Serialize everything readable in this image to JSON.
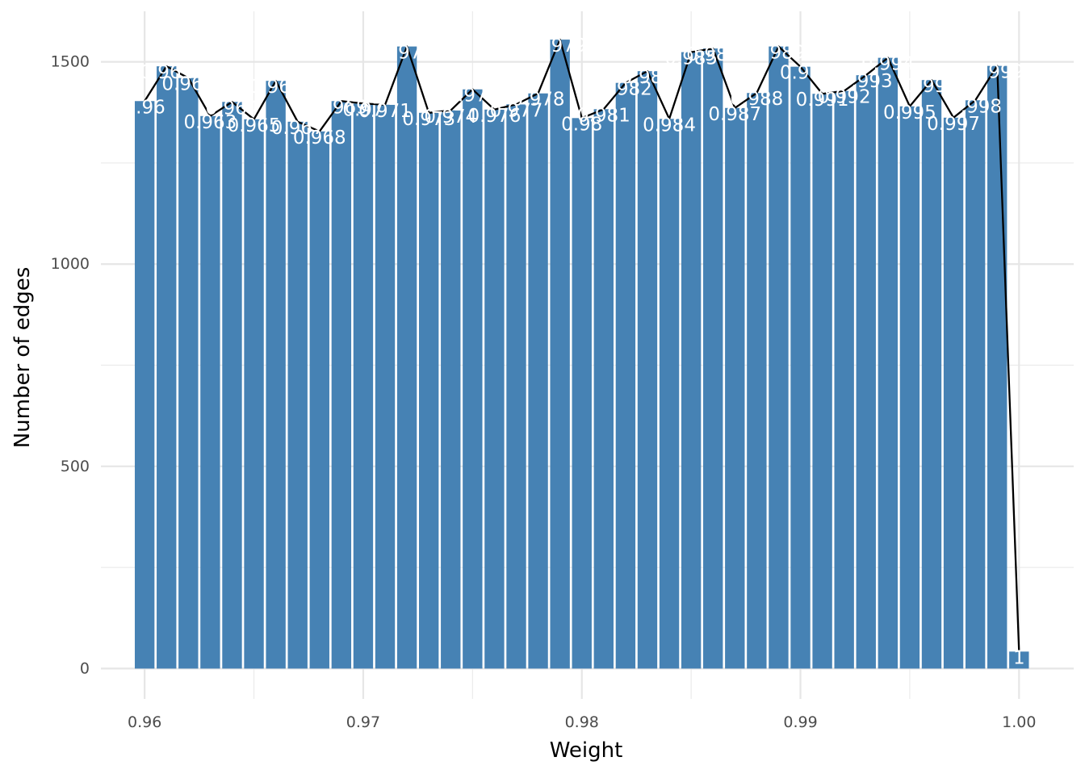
{
  "chart_data": {
    "type": "bar",
    "xlabel": "Weight",
    "ylabel": "Number of edges",
    "xlim": [
      0.958,
      1.0025
    ],
    "ylim": [
      -75,
      1625
    ],
    "x_ticks": [
      "0.96",
      "0.97",
      "0.98",
      "0.99",
      "1.00"
    ],
    "x_tick_values": [
      0.96,
      0.97,
      0.98,
      0.99,
      1.0
    ],
    "y_ticks": [
      "0",
      "500",
      "1000",
      "1500"
    ],
    "y_tick_values": [
      0,
      500,
      1000,
      1500
    ],
    "grid": true,
    "bar_color": "#4682B4",
    "line_color": "#000000",
    "bar_label_color": "#FFFFFF",
    "x": [
      0.96,
      0.961,
      0.962,
      0.963,
      0.964,
      0.965,
      0.966,
      0.967,
      0.968,
      0.969,
      0.97,
      0.971,
      0.972,
      0.973,
      0.974,
      0.975,
      0.976,
      0.977,
      0.978,
      0.979,
      0.98,
      0.981,
      0.982,
      0.983,
      0.984,
      0.985,
      0.986,
      0.987,
      0.988,
      0.989,
      0.99,
      0.991,
      0.992,
      0.993,
      0.994,
      0.995,
      0.996,
      0.997,
      0.998,
      0.999,
      1.0
    ],
    "values": [
      1403,
      1489,
      1460,
      1366,
      1401,
      1358,
      1453,
      1352,
      1328,
      1403,
      1397,
      1394,
      1538,
      1374,
      1380,
      1432,
      1382,
      1395,
      1422,
      1555,
      1361,
      1383,
      1448,
      1477,
      1359,
      1524,
      1533,
      1386,
      1423,
      1538,
      1488,
      1421,
      1428,
      1467,
      1510,
      1390,
      1455,
      1362,
      1405,
      1490,
      42
    ],
    "labels": [
      "0.96",
      "0.961",
      "0.962",
      "0.963",
      "0.964",
      "0.965",
      "0.966",
      "0.967",
      "0.968",
      "0.969",
      "0.97",
      "0.971",
      "0.972",
      "0.973",
      "0.974",
      "0.975",
      "0.976",
      "0.977",
      "0.978",
      "0.979",
      "0.98",
      "0.981",
      "0.982",
      "0.983",
      "0.984",
      "0.985",
      "0.986",
      "0.987",
      "0.988",
      "0.989",
      "0.99",
      "0.991",
      "0.992",
      "0.993",
      "0.994",
      "0.995",
      "0.996",
      "0.997",
      "0.998",
      "0.999",
      "1"
    ]
  }
}
